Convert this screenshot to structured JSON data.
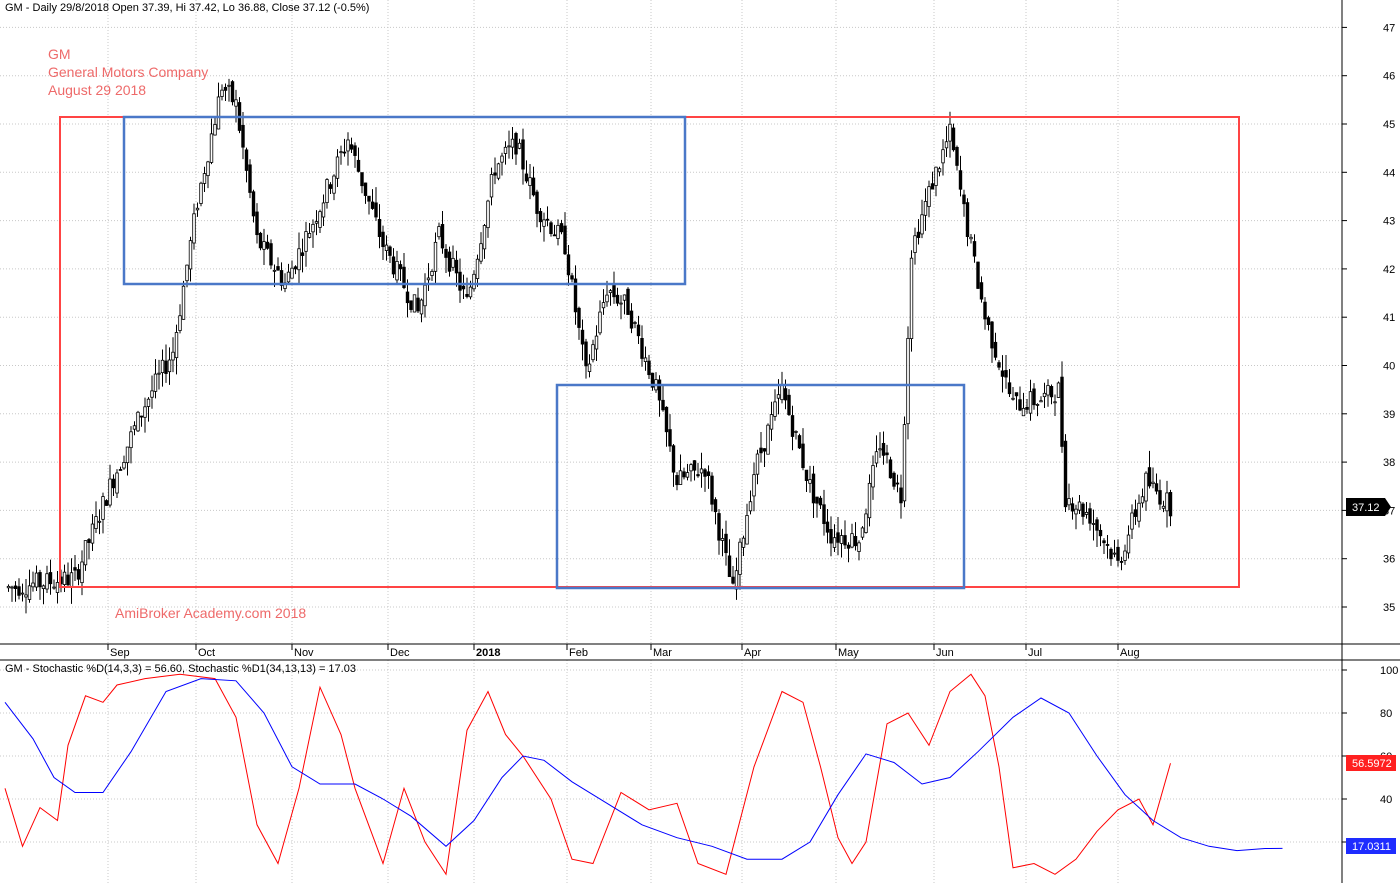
{
  "chart_data": [
    {
      "type": "candlestick",
      "header": "GM - Daily 29/8/2018 Open 37.39, Hi 37.42, Lo 36.88, Close 37.12 (-0.5%)",
      "company_lines": [
        "GM",
        "General Motors Company",
        "August 29 2018"
      ],
      "watermark": "AmiBroker Academy.com  2018",
      "y_ticks": [
        35,
        36,
        37,
        38,
        39,
        40,
        41,
        42,
        43,
        44,
        45,
        46,
        47
      ],
      "x_labels": [
        "Sep",
        "Oct",
        "Nov",
        "Dec",
        "2018",
        "Feb",
        "Mar",
        "Apr",
        "May",
        "Jun",
        "Jul",
        "Aug"
      ],
      "last_price_badge": "37.12",
      "price_path_anchors": [
        {
          "x": 1,
          "y": 35.4
        },
        {
          "x": 20,
          "y": 35.6
        },
        {
          "x": 30,
          "y": 37.5
        },
        {
          "x": 40,
          "y": 39.2
        },
        {
          "x": 48,
          "y": 40.3
        },
        {
          "x": 55,
          "y": 43.4
        },
        {
          "x": 62,
          "y": 45.8
        },
        {
          "x": 66,
          "y": 45.4
        },
        {
          "x": 72,
          "y": 42.6
        },
        {
          "x": 80,
          "y": 41.7
        },
        {
          "x": 90,
          "y": 43.3
        },
        {
          "x": 98,
          "y": 44.7
        },
        {
          "x": 108,
          "y": 42.5
        },
        {
          "x": 118,
          "y": 41.1
        },
        {
          "x": 124,
          "y": 42.7
        },
        {
          "x": 132,
          "y": 41.3
        },
        {
          "x": 140,
          "y": 44.1
        },
        {
          "x": 146,
          "y": 44.6
        },
        {
          "x": 152,
          "y": 43.3
        },
        {
          "x": 160,
          "y": 42.5
        },
        {
          "x": 166,
          "y": 39.8
        },
        {
          "x": 172,
          "y": 41.6
        },
        {
          "x": 178,
          "y": 41.2
        },
        {
          "x": 186,
          "y": 39.5
        },
        {
          "x": 192,
          "y": 37.6
        },
        {
          "x": 200,
          "y": 37.9
        },
        {
          "x": 208,
          "y": 35.3
        },
        {
          "x": 214,
          "y": 37.8
        },
        {
          "x": 222,
          "y": 39.5
        },
        {
          "x": 230,
          "y": 37.5
        },
        {
          "x": 236,
          "y": 36.5
        },
        {
          "x": 244,
          "y": 36.4
        },
        {
          "x": 250,
          "y": 38.4
        },
        {
          "x": 256,
          "y": 37.3
        },
        {
          "x": 259,
          "y": 42.4
        },
        {
          "x": 265,
          "y": 43.8
        },
        {
          "x": 270,
          "y": 44.8
        },
        {
          "x": 274,
          "y": 43.2
        },
        {
          "x": 280,
          "y": 41.0
        },
        {
          "x": 288,
          "y": 39.2
        },
        {
          "x": 296,
          "y": 39.3
        },
        {
          "x": 301,
          "y": 39.5
        },
        {
          "x": 303,
          "y": 37.3
        },
        {
          "x": 310,
          "y": 36.9
        },
        {
          "x": 318,
          "y": 35.9
        },
        {
          "x": 326,
          "y": 37.6
        },
        {
          "x": 333,
          "y": 37.1
        }
      ],
      "stochastic": {
        "header": "GM - Stochastic %D(14,3,3) = 56.60, Stochastic %D1(34,13,13) = 17.03",
        "y_ticks": [
          20,
          40,
          60,
          80,
          100
        ],
        "fast_badge": "56.5972",
        "slow_badge": "17.0311",
        "series": [
          {
            "name": "Stochastic %D(14,3,3)",
            "color": "#ff0000",
            "points": [
              [
                0,
                45
              ],
              [
                5,
                18
              ],
              [
                10,
                36
              ],
              [
                15,
                30
              ],
              [
                18,
                65
              ],
              [
                23,
                88
              ],
              [
                28,
                85
              ],
              [
                32,
                93
              ],
              [
                40,
                96
              ],
              [
                50,
                98
              ],
              [
                60,
                96
              ],
              [
                66,
                78
              ],
              [
                72,
                28
              ],
              [
                78,
                10
              ],
              [
                84,
                45
              ],
              [
                90,
                92
              ],
              [
                96,
                70
              ],
              [
                100,
                45
              ],
              [
                108,
                10
              ],
              [
                114,
                45
              ],
              [
                120,
                20
              ],
              [
                126,
                5
              ],
              [
                132,
                72
              ],
              [
                138,
                90
              ],
              [
                143,
                70
              ],
              [
                148,
                60
              ],
              [
                156,
                40
              ],
              [
                162,
                12
              ],
              [
                168,
                10
              ],
              [
                176,
                43
              ],
              [
                184,
                35
              ],
              [
                192,
                38
              ],
              [
                198,
                10
              ],
              [
                206,
                5
              ],
              [
                214,
                55
              ],
              [
                222,
                90
              ],
              [
                228,
                85
              ],
              [
                233,
                55
              ],
              [
                238,
                22
              ],
              [
                242,
                10
              ],
              [
                246,
                20
              ],
              [
                252,
                75
              ],
              [
                258,
                80
              ],
              [
                264,
                65
              ],
              [
                270,
                90
              ],
              [
                276,
                98
              ],
              [
                280,
                88
              ],
              [
                284,
                55
              ],
              [
                288,
                8
              ],
              [
                294,
                10
              ],
              [
                300,
                5
              ],
              [
                306,
                12
              ],
              [
                312,
                25
              ],
              [
                318,
                35
              ],
              [
                324,
                40
              ],
              [
                328,
                28
              ],
              [
                333,
                56.6
              ]
            ]
          },
          {
            "name": "Stochastic %D1(34,13,13)",
            "color": "#0000ff",
            "points": [
              [
                0,
                85
              ],
              [
                8,
                68
              ],
              [
                14,
                50
              ],
              [
                20,
                43
              ],
              [
                28,
                43
              ],
              [
                36,
                62
              ],
              [
                46,
                90
              ],
              [
                56,
                96
              ],
              [
                66,
                95
              ],
              [
                74,
                80
              ],
              [
                82,
                55
              ],
              [
                90,
                47
              ],
              [
                100,
                47
              ],
              [
                108,
                40
              ],
              [
                116,
                32
              ],
              [
                126,
                18
              ],
              [
                134,
                30
              ],
              [
                142,
                50
              ],
              [
                148,
                60
              ],
              [
                154,
                58
              ],
              [
                162,
                48
              ],
              [
                172,
                38
              ],
              [
                182,
                28
              ],
              [
                192,
                22
              ],
              [
                202,
                18
              ],
              [
                212,
                12
              ],
              [
                222,
                12
              ],
              [
                230,
                20
              ],
              [
                238,
                42
              ],
              [
                246,
                61
              ],
              [
                254,
                57
              ],
              [
                262,
                47
              ],
              [
                270,
                50
              ],
              [
                278,
                62
              ],
              [
                288,
                78
              ],
              [
                296,
                87
              ],
              [
                304,
                80
              ],
              [
                312,
                60
              ],
              [
                320,
                42
              ],
              [
                328,
                30
              ],
              [
                336,
                22
              ],
              [
                344,
                18
              ],
              [
                352,
                16
              ],
              [
                360,
                17
              ],
              [
                365,
                17.03
              ]
            ]
          }
        ]
      }
    }
  ]
}
